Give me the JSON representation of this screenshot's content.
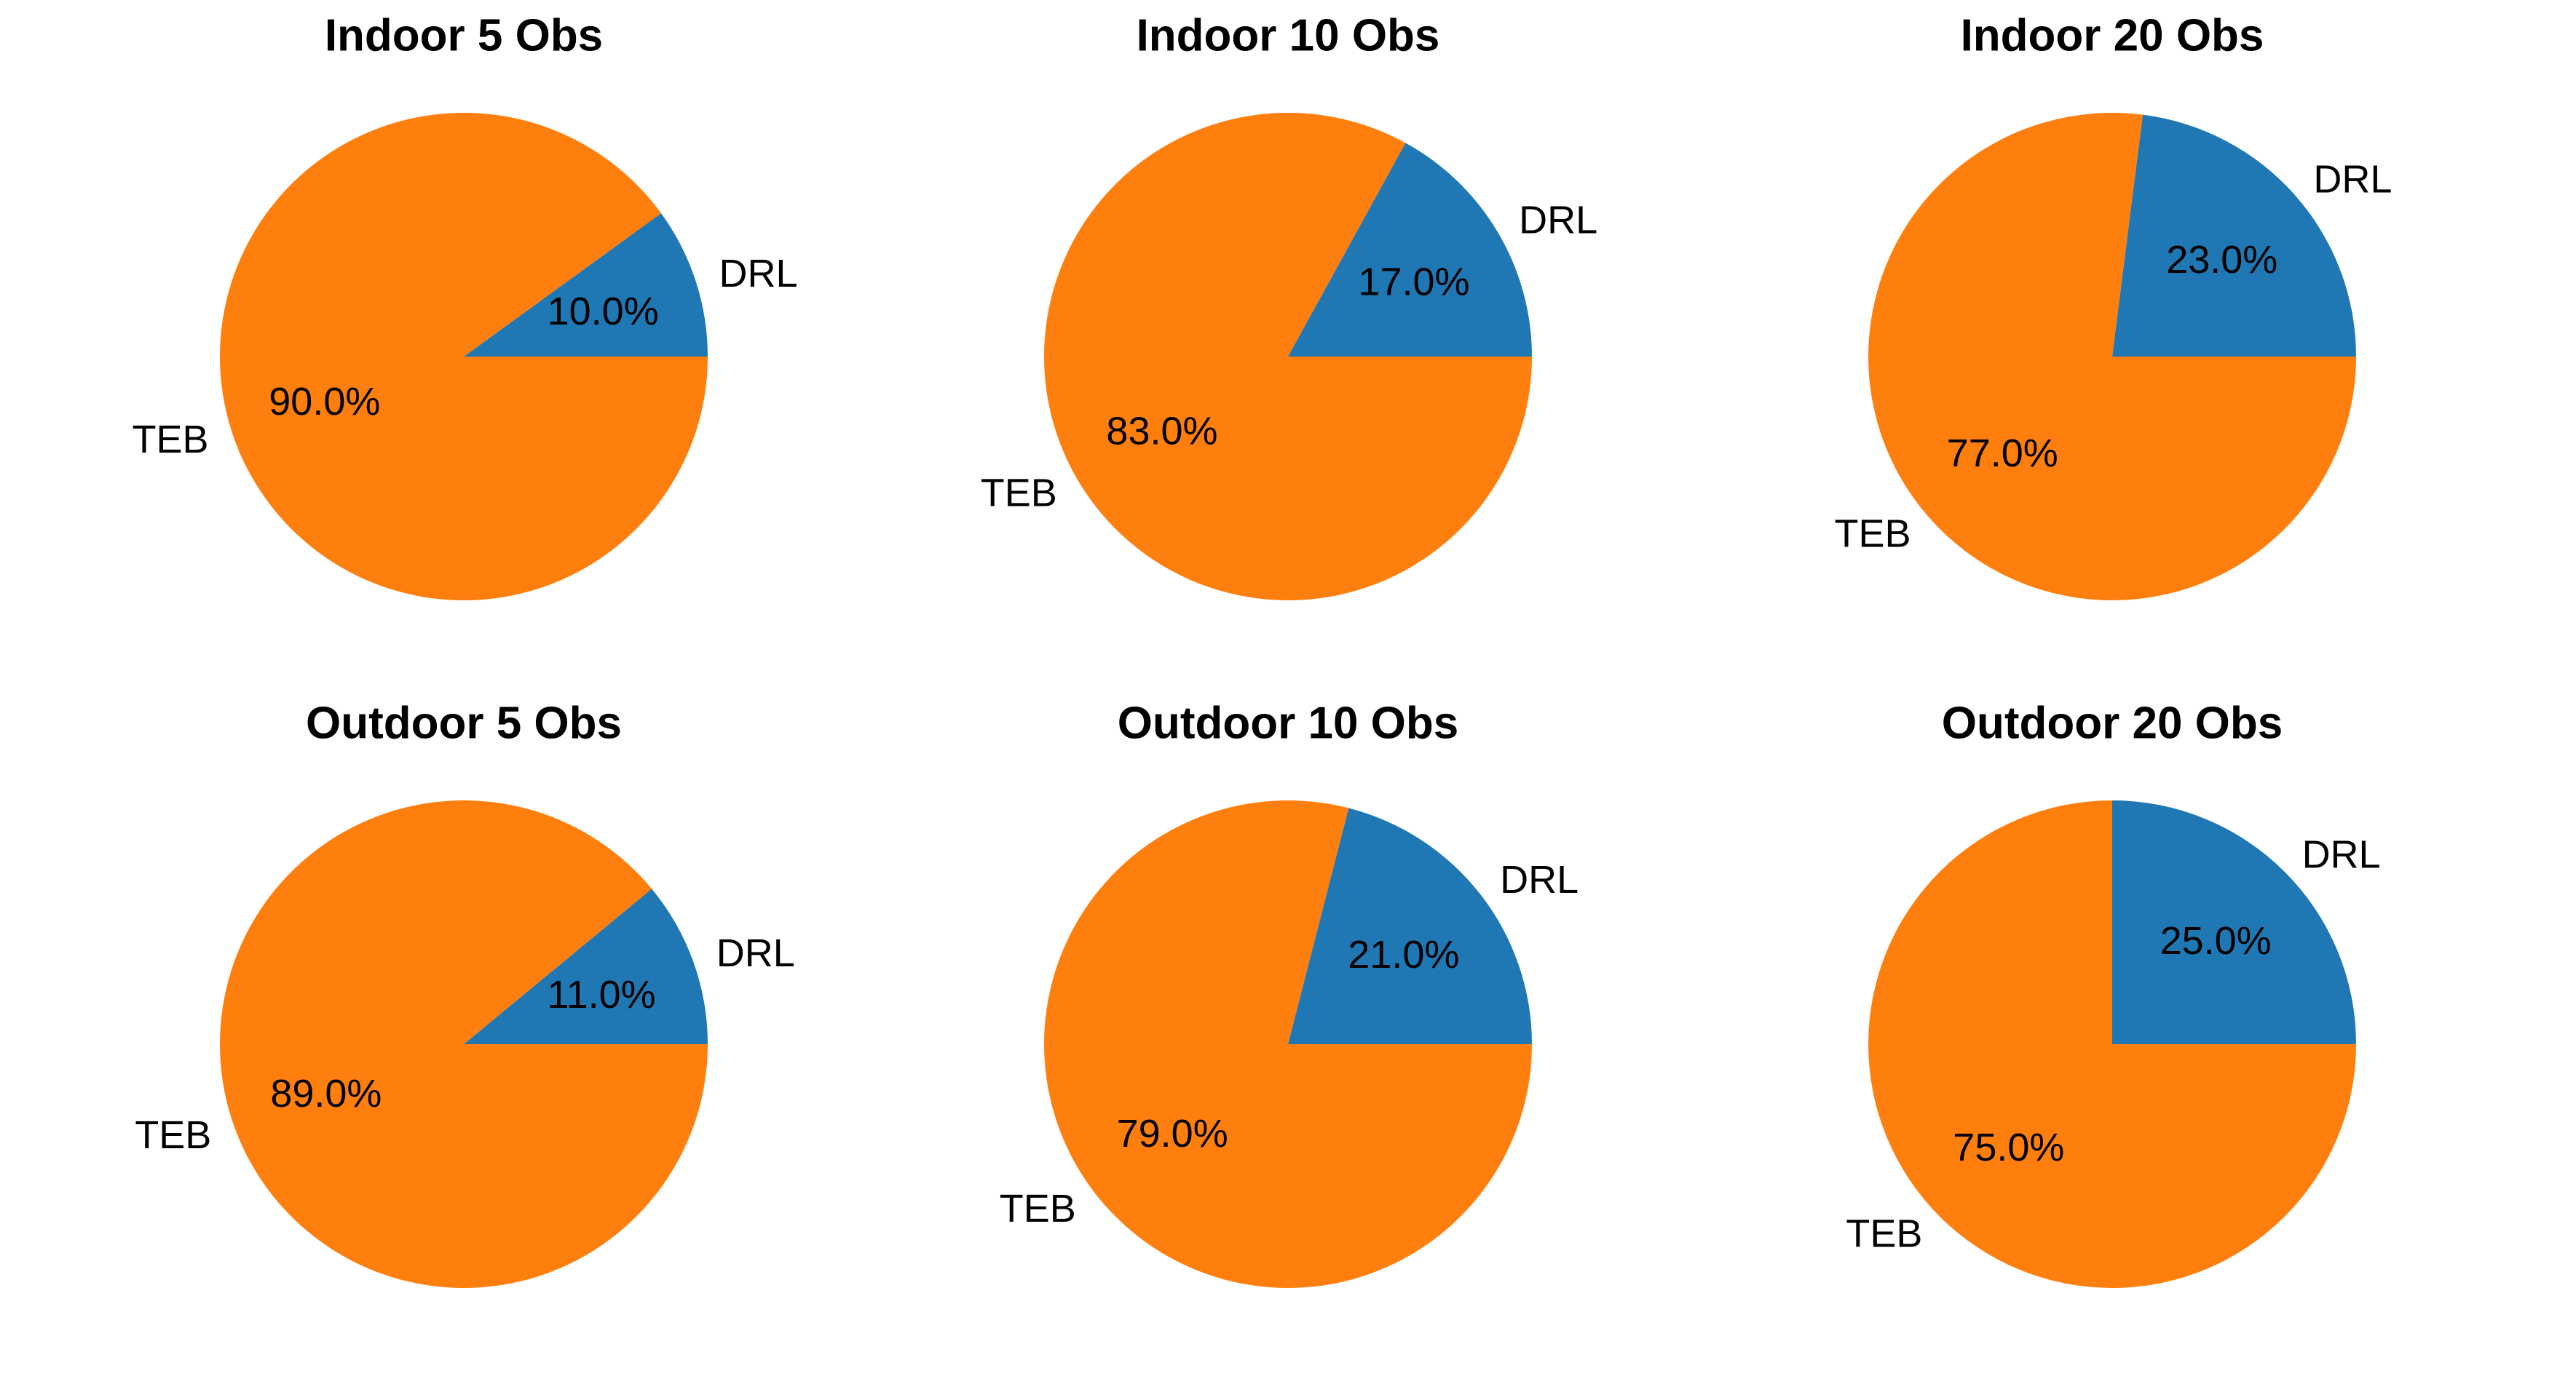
{
  "figure": {
    "background_color": "#ffffff",
    "text_color": "#000000",
    "grid": {
      "rows": 2,
      "cols": 3
    }
  },
  "series_colors": {
    "DRL": "#1f77b4",
    "TEB": "#ff7f0e"
  },
  "chart_data": [
    {
      "type": "pie",
      "title": "Indoor 5 Obs",
      "start_angle_deg": 0,
      "direction": "counterclockwise",
      "label_distance": 1.1,
      "pct_distance": 0.6,
      "legend_position": "none",
      "slices": [
        {
          "label": "DRL",
          "value": 10.0,
          "pct_label": "10.0%",
          "color": "#1f77b4"
        },
        {
          "label": "TEB",
          "value": 90.0,
          "pct_label": "90.0%",
          "color": "#ff7f0e"
        }
      ]
    },
    {
      "type": "pie",
      "title": "Indoor 10 Obs",
      "start_angle_deg": 0,
      "direction": "counterclockwise",
      "label_distance": 1.1,
      "pct_distance": 0.6,
      "legend_position": "none",
      "slices": [
        {
          "label": "DRL",
          "value": 17.0,
          "pct_label": "17.0%",
          "color": "#1f77b4"
        },
        {
          "label": "TEB",
          "value": 83.0,
          "pct_label": "83.0%",
          "color": "#ff7f0e"
        }
      ]
    },
    {
      "type": "pie",
      "title": "Indoor 20 Obs",
      "start_angle_deg": 0,
      "direction": "counterclockwise",
      "label_distance": 1.1,
      "pct_distance": 0.6,
      "legend_position": "none",
      "slices": [
        {
          "label": "DRL",
          "value": 23.0,
          "pct_label": "23.0%",
          "color": "#1f77b4"
        },
        {
          "label": "TEB",
          "value": 77.0,
          "pct_label": "77.0%",
          "color": "#ff7f0e"
        }
      ]
    },
    {
      "type": "pie",
      "title": "Outdoor 5 Obs",
      "start_angle_deg": 0,
      "direction": "counterclockwise",
      "label_distance": 1.1,
      "pct_distance": 0.6,
      "legend_position": "none",
      "slices": [
        {
          "label": "DRL",
          "value": 11.0,
          "pct_label": "11.0%",
          "color": "#1f77b4"
        },
        {
          "label": "TEB",
          "value": 89.0,
          "pct_label": "89.0%",
          "color": "#ff7f0e"
        }
      ]
    },
    {
      "type": "pie",
      "title": "Outdoor 10 Obs",
      "start_angle_deg": 0,
      "direction": "counterclockwise",
      "label_distance": 1.1,
      "pct_distance": 0.6,
      "legend_position": "none",
      "slices": [
        {
          "label": "DRL",
          "value": 21.0,
          "pct_label": "21.0%",
          "color": "#1f77b4"
        },
        {
          "label": "TEB",
          "value": 79.0,
          "pct_label": "79.0%",
          "color": "#ff7f0e"
        }
      ]
    },
    {
      "type": "pie",
      "title": "Outdoor 20 Obs",
      "start_angle_deg": 0,
      "direction": "counterclockwise",
      "label_distance": 1.1,
      "pct_distance": 0.6,
      "legend_position": "none",
      "slices": [
        {
          "label": "DRL",
          "value": 25.0,
          "pct_label": "25.0%",
          "color": "#1f77b4"
        },
        {
          "label": "TEB",
          "value": 75.0,
          "pct_label": "75.0%",
          "color": "#ff7f0e"
        }
      ]
    }
  ]
}
